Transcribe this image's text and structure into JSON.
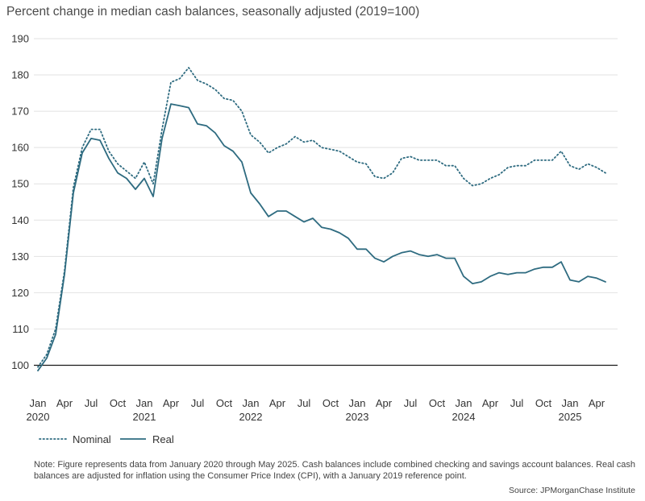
{
  "chart_data": {
    "type": "line",
    "title": "Percent change in median cash balances, seasonally adjusted (2019=100)",
    "xlabel": "",
    "ylabel": "",
    "ylim": [
      95,
      190
    ],
    "yticks": [
      100,
      110,
      120,
      130,
      140,
      150,
      160,
      170,
      180,
      190
    ],
    "reference_line": 100,
    "x_start": "2020-01",
    "x_end": "2025-05",
    "x_tick_labels": [
      {
        "index": 0,
        "month": "Jan",
        "year": "2020"
      },
      {
        "index": 3,
        "month": "Apr",
        "year": ""
      },
      {
        "index": 6,
        "month": "Jul",
        "year": ""
      },
      {
        "index": 9,
        "month": "Oct",
        "year": ""
      },
      {
        "index": 12,
        "month": "Jan",
        "year": "2021"
      },
      {
        "index": 15,
        "month": "Apr",
        "year": ""
      },
      {
        "index": 18,
        "month": "Jul",
        "year": ""
      },
      {
        "index": 21,
        "month": "Oct",
        "year": ""
      },
      {
        "index": 24,
        "month": "Jan",
        "year": "2022"
      },
      {
        "index": 27,
        "month": "Apr",
        "year": ""
      },
      {
        "index": 30,
        "month": "Jul",
        "year": ""
      },
      {
        "index": 33,
        "month": "Oct",
        "year": ""
      },
      {
        "index": 36,
        "month": "Jan",
        "year": "2023"
      },
      {
        "index": 39,
        "month": "Apr",
        "year": ""
      },
      {
        "index": 42,
        "month": "Jul",
        "year": ""
      },
      {
        "index": 45,
        "month": "Oct",
        "year": ""
      },
      {
        "index": 48,
        "month": "Jan",
        "year": "2024"
      },
      {
        "index": 51,
        "month": "Apr",
        "year": ""
      },
      {
        "index": 54,
        "month": "Jul",
        "year": ""
      },
      {
        "index": 57,
        "month": "Oct",
        "year": ""
      },
      {
        "index": 60,
        "month": "Jan",
        "year": "2025"
      },
      {
        "index": 63,
        "month": "Apr",
        "year": ""
      }
    ],
    "series": [
      {
        "name": "Nominal",
        "style": "dotted",
        "color": "#2e6b80",
        "values": [
          99.5,
          103,
          110,
          126,
          149,
          160,
          165,
          165,
          159,
          155.5,
          153.5,
          151.5,
          156,
          150,
          165,
          178,
          179,
          182,
          178.5,
          177.5,
          176,
          173.5,
          173,
          170,
          163.5,
          161.5,
          158.5,
          160,
          161,
          163,
          161.5,
          162,
          160,
          159.5,
          159,
          157.5,
          156,
          155.5,
          152,
          151.5,
          153,
          157,
          157.5,
          156.5,
          156.5,
          156.5,
          155,
          155,
          151.5,
          149.5,
          150,
          151.5,
          152.5,
          154.5,
          155,
          155,
          156.5,
          156.5,
          156.5,
          159,
          155,
          154,
          155.5,
          154.5,
          153
        ]
      },
      {
        "name": "Real",
        "style": "solid",
        "color": "#2e6b80",
        "values": [
          98.5,
          102,
          108.5,
          125,
          147.5,
          158.5,
          162.5,
          162,
          157,
          153,
          151.5,
          148.5,
          151.5,
          146.5,
          162.5,
          172,
          171.5,
          171,
          166.5,
          166,
          164,
          160.5,
          159,
          156,
          147.5,
          144.5,
          141,
          142.5,
          142.5,
          141,
          139.5,
          140.5,
          138,
          137.5,
          136.5,
          135,
          132,
          132,
          129.5,
          128.5,
          130,
          131,
          131.5,
          130.5,
          130,
          130.5,
          129.5,
          129.5,
          124.5,
          122.5,
          123,
          124.5,
          125.5,
          125,
          125.5,
          125.5,
          126.5,
          127,
          127,
          128.5,
          123.5,
          123,
          124.5,
          124,
          123
        ]
      }
    ]
  },
  "legend": {
    "nominal_label": "Nominal",
    "real_label": "Real"
  },
  "footer": {
    "note": "Note: Figure represents data from January 2020 through May 2025. Cash balances include combined checking and savings account balances. Real cash balances are adjusted for inflation using the Consumer Price Index (CPI), with a January 2019 reference point.",
    "source": "Source: JPMorganChase Institute"
  },
  "colors": {
    "line": "#2e6b80",
    "grid": "#e2e2e2",
    "reference": "#1a1a1a"
  }
}
